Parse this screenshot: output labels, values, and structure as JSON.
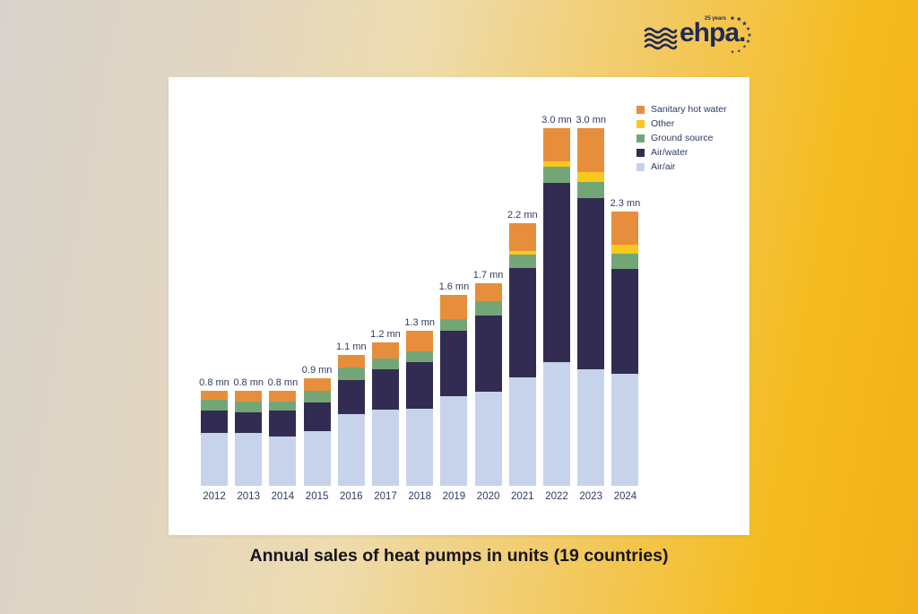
{
  "logo": {
    "brand": "ehpa.",
    "anniversary": "25 years",
    "star_glyph": "★",
    "star_count": 9,
    "color": "#1f2a56"
  },
  "title": "Annual sales of heat pumps in units (19 countries)",
  "colors": {
    "background_left": "#d7d3cc",
    "background_right": "#f5bb1d",
    "panel": "#ffffff",
    "text": "#2e3a63",
    "title_text": "#15151d"
  },
  "chart_data": {
    "type": "bar",
    "stacked": true,
    "unit": "mn units",
    "grid": false,
    "legend_position": "top-right",
    "categories": [
      "2012",
      "2013",
      "2014",
      "2015",
      "2016",
      "2017",
      "2018",
      "2019",
      "2020",
      "2021",
      "2022",
      "2023",
      "2024"
    ],
    "series": [
      {
        "name": "Air/air",
        "color": "#c7d3ea",
        "values": [
          0.44,
          0.44,
          0.41,
          0.46,
          0.6,
          0.64,
          0.65,
          0.75,
          0.79,
          0.91,
          1.04,
          0.98,
          0.94
        ]
      },
      {
        "name": "Air/water",
        "color": "#322c52",
        "values": [
          0.19,
          0.18,
          0.22,
          0.24,
          0.29,
          0.34,
          0.39,
          0.55,
          0.64,
          0.92,
          1.5,
          1.43,
          0.88
        ]
      },
      {
        "name": "Ground source",
        "color": "#73a677",
        "values": [
          0.09,
          0.09,
          0.08,
          0.1,
          0.1,
          0.09,
          0.09,
          0.1,
          0.12,
          0.11,
          0.14,
          0.14,
          0.13
        ]
      },
      {
        "name": "Other",
        "color": "#f8c81c",
        "values": [
          0.0,
          0.0,
          0.0,
          0.0,
          0.0,
          0.0,
          0.0,
          0.0,
          0.0,
          0.03,
          0.04,
          0.08,
          0.07
        ]
      },
      {
        "name": "Sanitary hot water",
        "color": "#e78e3c",
        "values": [
          0.08,
          0.09,
          0.09,
          0.1,
          0.11,
          0.13,
          0.17,
          0.2,
          0.15,
          0.23,
          0.28,
          0.37,
          0.28
        ]
      }
    ],
    "totals": [
      0.8,
      0.8,
      0.8,
      0.9,
      1.1,
      1.2,
      1.3,
      1.6,
      1.7,
      2.2,
      3.0,
      3.0,
      2.3
    ],
    "bar_labels": [
      "0.8 mn",
      "0.8 mn",
      "0.8 mn",
      "0.9 mn",
      "1.1 mn",
      "1.2 mn",
      "1.3 mn",
      "1.6 mn",
      "1.7 mn",
      "2.2 mn",
      "3.0 mn",
      "3.0 mn",
      "2.3 mn"
    ],
    "legend": [
      "Sanitary hot water",
      "Other",
      "Ground source",
      "Air/water",
      "Air/air"
    ]
  }
}
